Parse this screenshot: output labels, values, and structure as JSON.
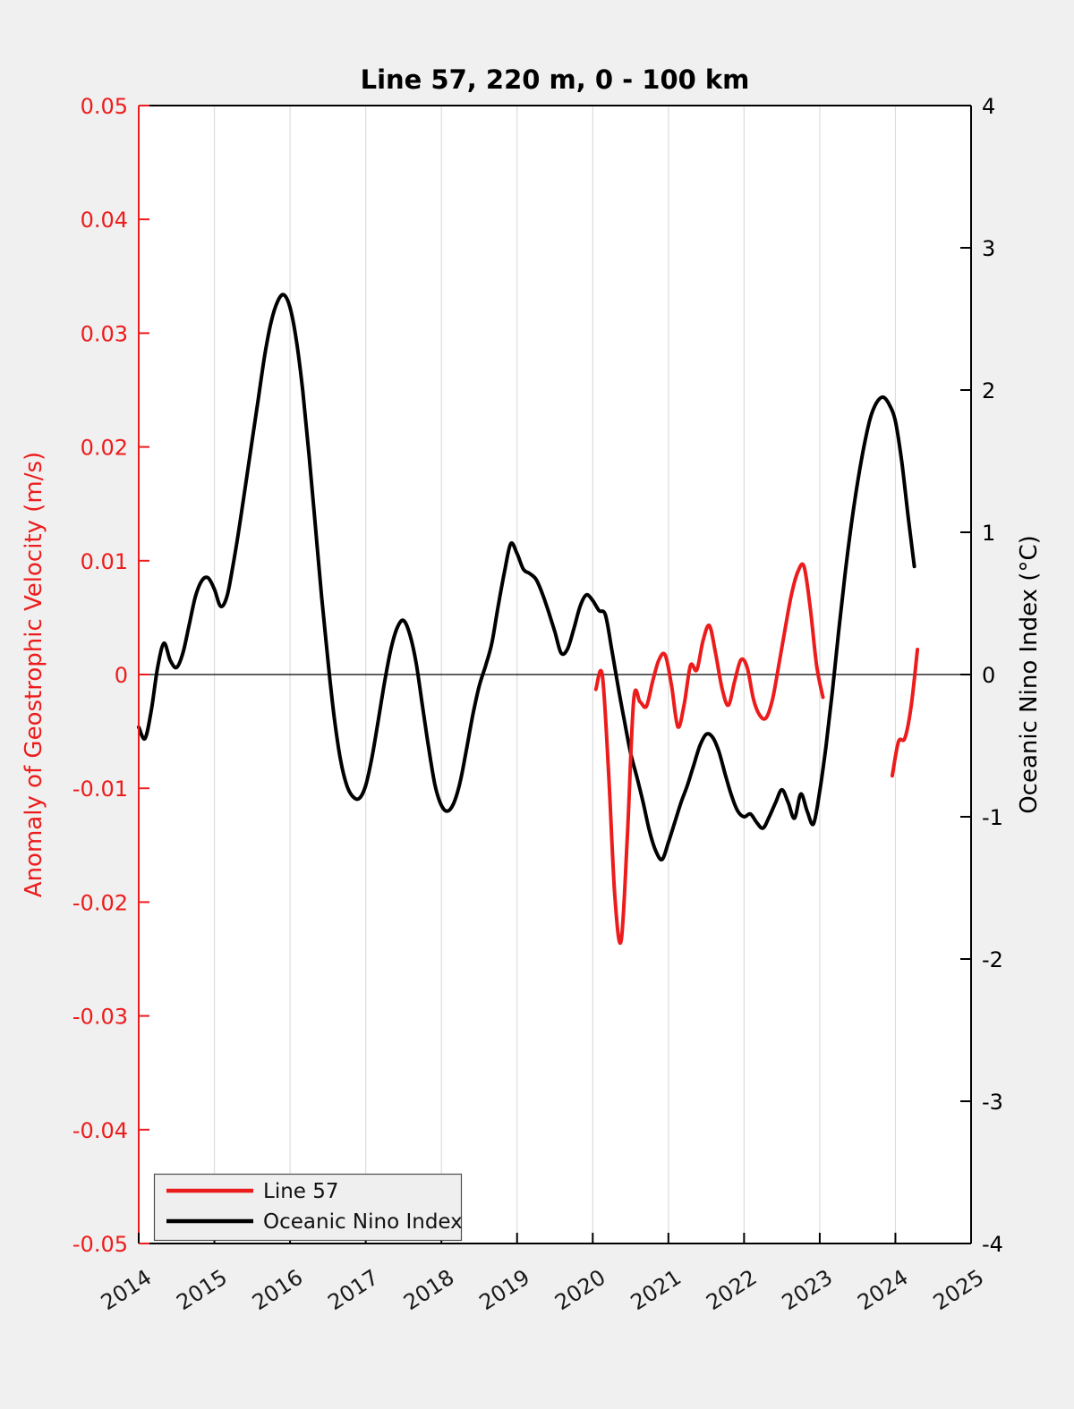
{
  "title": "Line 57, 220 m, 0 - 100 km",
  "colors": {
    "figure_background": "#f0f0f0",
    "plot_background": "#ffffff",
    "grid": "#dcdcdc",
    "zero_line": "#000000",
    "line57_red": "#ed1c1c",
    "oni_black": "#000000",
    "tick_text": "#1a1a1a",
    "legend_border": "#4d4d4d",
    "legend_background": "#efefef"
  },
  "legend": {
    "items": [
      {
        "label": "Line 57",
        "color": "#ed1c1c"
      },
      {
        "label": "Oceanic Nino Index",
        "color": "#000000"
      }
    ]
  },
  "chart_data": {
    "type": "line",
    "title": "Line 57, 220 m, 0 - 100 km",
    "x_axis": {
      "label": "",
      "range": [
        2014,
        2025
      ],
      "ticks": [
        "2014",
        "2015",
        "2016",
        "2017",
        "2018",
        "2019",
        "2020",
        "2021",
        "2022",
        "2023",
        "2024",
        "2025"
      ],
      "tick_rotation_deg": -33,
      "gridlines": "vertical-only"
    },
    "left_y_axis": {
      "label": "Anomaly of Geostrophic Velocity (m/s)",
      "color": "#ed1c1c",
      "range": [
        -0.05,
        0.05
      ],
      "ticks": [
        "0.05",
        "0.04",
        "0.03",
        "0.02",
        "0.01",
        "0",
        "-0.01",
        "-0.02",
        "-0.03",
        "-0.04",
        "-0.05"
      ]
    },
    "right_y_axis": {
      "label": "Oceanic Nino Index (°C)",
      "color": "#000000",
      "range": [
        -4,
        4
      ],
      "ticks": [
        "4",
        "3",
        "2",
        "1",
        "0",
        "-1",
        "-2",
        "-3",
        "-4"
      ]
    },
    "zero_line": true,
    "legend_position": "lower-left",
    "series": [
      {
        "name": "Oceanic Nino Index",
        "axis": "right",
        "color": "#000000",
        "line_width": 4,
        "sampling": "monthly",
        "segments": [
          {
            "x_start": 2014.0,
            "x_step": 0.083333,
            "y": [
              -0.37,
              -0.45,
              -0.25,
              0.05,
              0.22,
              0.1,
              0.05,
              0.15,
              0.35,
              0.55,
              0.66,
              0.68,
              0.6,
              0.48,
              0.55,
              0.78,
              1.05,
              1.35,
              1.65,
              1.95,
              2.25,
              2.48,
              2.62,
              2.67,
              2.58,
              2.35,
              2.0,
              1.55,
              1.05,
              0.55,
              0.1,
              -0.3,
              -0.6,
              -0.78,
              -0.86,
              -0.87,
              -0.78,
              -0.58,
              -0.32,
              -0.05,
              0.18,
              0.33,
              0.38,
              0.28,
              0.08,
              -0.22,
              -0.52,
              -0.78,
              -0.92,
              -0.96,
              -0.9,
              -0.75,
              -0.52,
              -0.28,
              -0.08,
              0.06,
              0.22,
              0.48,
              0.72,
              0.92,
              0.85,
              0.74,
              0.71,
              0.67,
              0.57,
              0.44,
              0.3,
              0.15,
              0.18,
              0.32,
              0.48,
              0.56,
              0.52,
              0.45,
              0.42,
              0.18,
              -0.08,
              -0.32,
              -0.55,
              -0.72,
              -0.9,
              -1.1,
              -1.24,
              -1.3,
              -1.18,
              -1.04,
              -0.9,
              -0.78,
              -0.64,
              -0.5,
              -0.42,
              -0.44,
              -0.54,
              -0.7,
              -0.85,
              -0.96,
              -1.0,
              -0.98,
              -1.04,
              -1.08,
              -1.0,
              -0.9,
              -0.81,
              -0.9,
              -1.01,
              -0.84,
              -0.96,
              -1.05,
              -0.82,
              -0.5,
              -0.12,
              0.3,
              0.7,
              1.05,
              1.35,
              1.6,
              1.8,
              1.91,
              1.95,
              1.9,
              1.78,
              1.5,
              1.12,
              0.76
            ]
          }
        ]
      },
      {
        "name": "Line 57",
        "axis": "left",
        "color": "#ed1c1c",
        "line_width": 4,
        "sampling": "monthly",
        "segments": [
          {
            "x_start": 2020.042,
            "x_step": 0.083333,
            "y": [
              -0.0013,
              0.0,
              -0.0085,
              -0.0195,
              -0.0234,
              -0.014,
              -0.0022,
              -0.0024,
              -0.0028,
              -0.0006,
              0.0013,
              0.0017,
              -0.001,
              -0.0046,
              -0.0026,
              0.0008,
              0.0004,
              0.003,
              0.0043,
              0.0018,
              -0.0012,
              -0.0027,
              -0.0006,
              0.0013,
              0.0006,
              -0.0022,
              -0.0036,
              -0.0038,
              -0.0022,
              0.0008,
              0.004,
              0.007,
              0.009,
              0.0095,
              0.0058,
              0.0008,
              -0.002
            ]
          },
          {
            "x_start": 2023.958,
            "x_step": 0.083333,
            "y": [
              -0.0089,
              -0.0059,
              -0.0056,
              -0.0028,
              0.0022
            ]
          }
        ]
      }
    ]
  }
}
